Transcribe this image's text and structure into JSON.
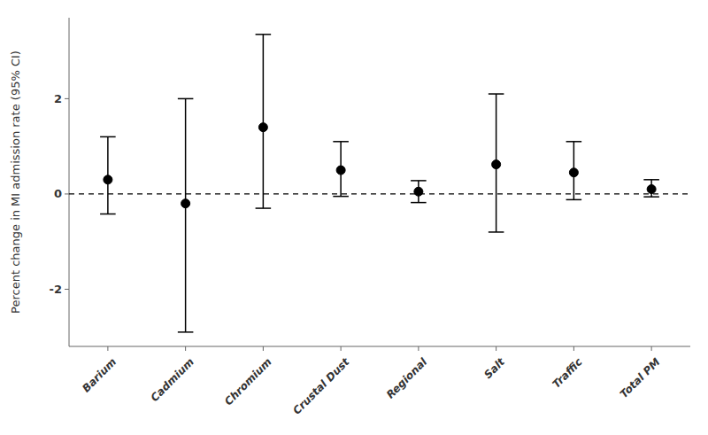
{
  "chart_data": {
    "type": "errorbar",
    "categories": [
      "Barium",
      "Cadmium",
      "Chromium",
      "Crustal Dust",
      "Regional",
      "Salt",
      "Traffic",
      "Total PM"
    ],
    "values": [
      0.3,
      -0.2,
      1.4,
      0.5,
      0.05,
      0.62,
      0.45,
      0.1
    ],
    "ci_lower": [
      -0.42,
      -2.9,
      -0.3,
      -0.05,
      -0.18,
      -0.8,
      -0.12,
      -0.06
    ],
    "ci_upper": [
      1.2,
      2.0,
      3.35,
      1.1,
      0.28,
      2.1,
      1.1,
      0.3
    ],
    "ylabel": "Percent change in MI admission rate (95% CI)",
    "ylim": [
      -3.2,
      3.7
    ],
    "yticks": [
      -2,
      0,
      2
    ],
    "reference_line": 0,
    "color": "#000000",
    "grid": false
  }
}
